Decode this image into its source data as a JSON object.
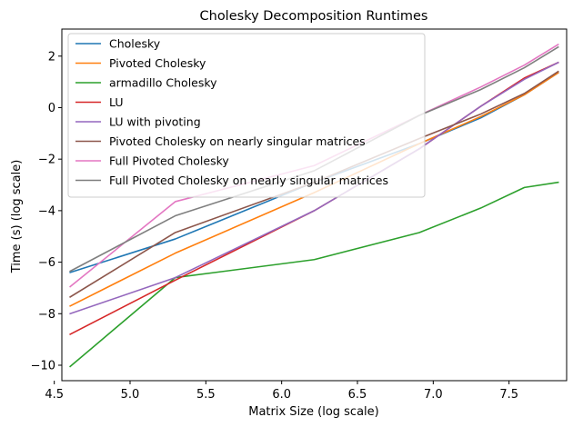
{
  "chart_data": {
    "type": "line",
    "title": "Cholesky Decomposition Runtimes",
    "xlabel": "Matrix Size (log scale)",
    "ylabel": "Time (s) (log scale)",
    "xlim": [
      4.55,
      7.88
    ],
    "ylim": [
      -10.6,
      3.05
    ],
    "xticks": [
      {
        "value": 4.5,
        "label": "4.5"
      },
      {
        "value": 5.0,
        "label": "5.0"
      },
      {
        "value": 5.5,
        "label": "5.5"
      },
      {
        "value": 6.0,
        "label": "6.0"
      },
      {
        "value": 6.5,
        "label": "6.5"
      },
      {
        "value": 7.0,
        "label": "7.0"
      },
      {
        "value": 7.5,
        "label": "7.5"
      }
    ],
    "yticks": [
      {
        "value": 2,
        "label": "2"
      },
      {
        "value": 0,
        "label": "0"
      },
      {
        "value": -2,
        "label": "−2"
      },
      {
        "value": -4,
        "label": "−4"
      },
      {
        "value": -6,
        "label": "−6"
      },
      {
        "value": -8,
        "label": "−8"
      },
      {
        "value": -10,
        "label": "−10"
      }
    ],
    "grid": false,
    "legend_position": "top-left",
    "x": [
      4.605,
      5.298,
      6.215,
      6.908,
      7.313,
      7.601,
      7.824
    ],
    "series": [
      {
        "name": "Cholesky",
        "color": "#1f77b4",
        "values": [
          -6.4,
          -5.1,
          -2.9,
          -1.4,
          -0.4,
          0.5,
          1.35
        ]
      },
      {
        "name": "Pivoted Cholesky",
        "color": "#ff7f0e",
        "values": [
          -7.7,
          -5.65,
          -3.3,
          -1.4,
          -0.35,
          0.5,
          1.35
        ]
      },
      {
        "name": "armadillo Cholesky",
        "color": "#2ca02c",
        "values": [
          -10.05,
          -6.6,
          -5.9,
          -4.85,
          -3.9,
          -3.1,
          -2.9
        ]
      },
      {
        "name": "LU",
        "color": "#d62728",
        "values": [
          -8.8,
          -6.7,
          -4.0,
          -1.6,
          0.05,
          1.15,
          1.75
        ]
      },
      {
        "name": "LU with pivoting",
        "color": "#9467bd",
        "values": [
          -8.0,
          -6.6,
          -4.0,
          -1.6,
          0.05,
          1.1,
          1.75
        ]
      },
      {
        "name": "Pivoted Cholesky on nearly singular matrices",
        "color": "#8c564b",
        "values": [
          -7.35,
          -4.85,
          -2.9,
          -1.2,
          -0.25,
          0.55,
          1.4
        ]
      },
      {
        "name": "Full Pivoted Cholesky",
        "color": "#e377c2",
        "values": [
          -6.95,
          -3.65,
          -2.25,
          -0.3,
          0.8,
          1.65,
          2.45
        ]
      },
      {
        "name": "Full Pivoted Cholesky on nearly singular matrices",
        "color": "#7f7f7f",
        "values": [
          -6.35,
          -4.2,
          -2.45,
          -0.3,
          0.7,
          1.55,
          2.35
        ]
      }
    ]
  }
}
